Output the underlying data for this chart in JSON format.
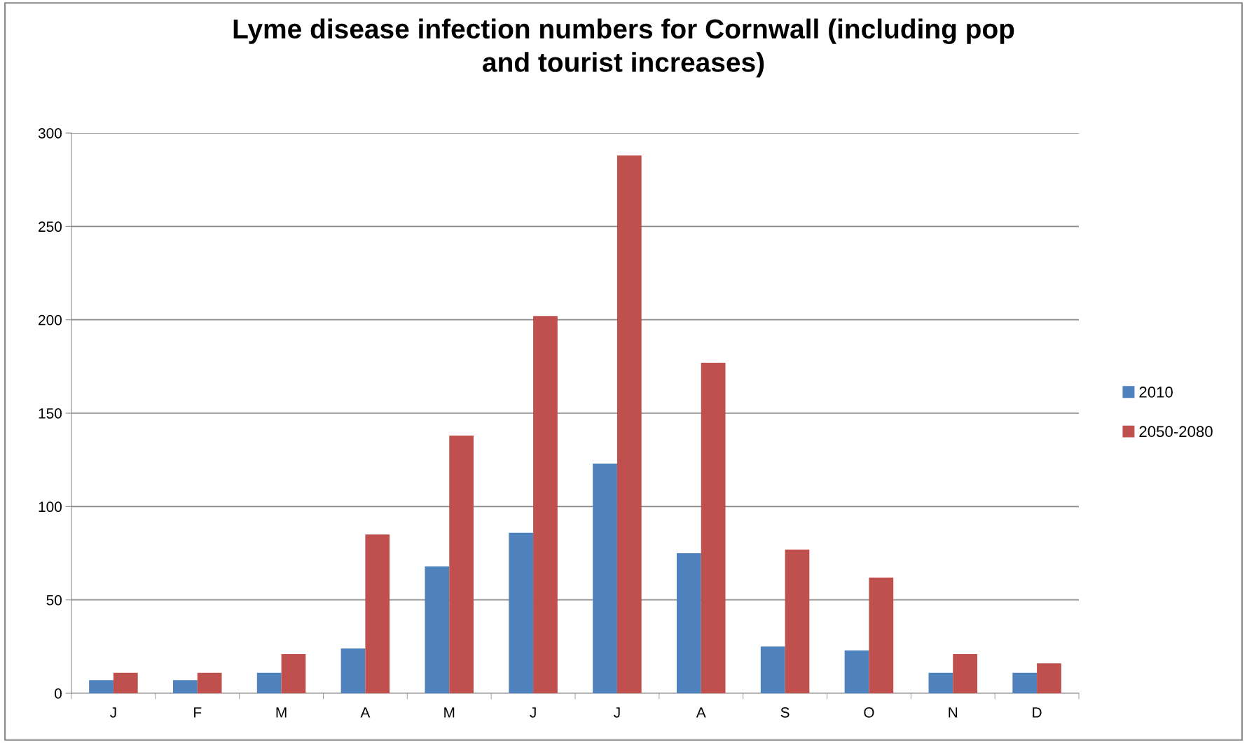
{
  "chart_data": {
    "type": "bar",
    "title": "Lyme disease infection numbers for Cornwall (including pop\nand tourist increases)",
    "categories": [
      "J",
      "F",
      "M",
      "A",
      "M",
      "J",
      "J",
      "A",
      "S",
      "O",
      "N",
      "D"
    ],
    "series": [
      {
        "name": "2010",
        "color": "#4f81bd",
        "values": [
          7,
          7,
          11,
          24,
          68,
          86,
          123,
          75,
          25,
          23,
          11,
          11
        ]
      },
      {
        "name": "2050-2080",
        "color": "#c0504d",
        "values": [
          11,
          11,
          21,
          85,
          138,
          202,
          288,
          177,
          77,
          62,
          21,
          16
        ]
      }
    ],
    "ylim": [
      0,
      300
    ],
    "yticks": [
      0,
      50,
      100,
      150,
      200,
      250,
      300
    ],
    "grid": "y",
    "legend": "right"
  }
}
